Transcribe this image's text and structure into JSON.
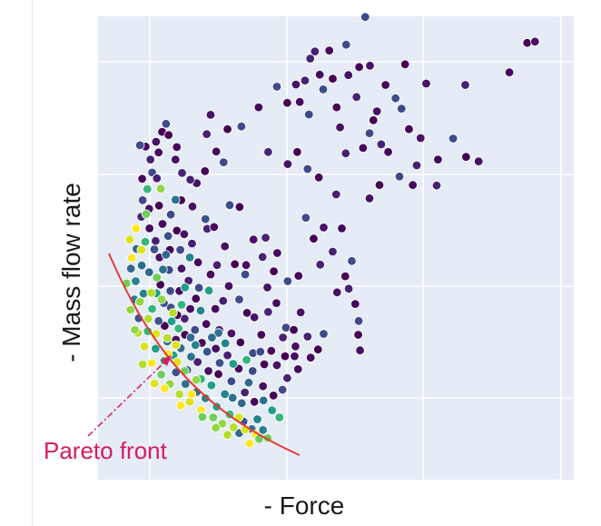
{
  "chart_data": {
    "type": "scatter",
    "title": "",
    "xlabel": "- Force",
    "ylabel": "- Mass flow rate",
    "xlim": [
      0,
      1
    ],
    "ylim": [
      0,
      1
    ],
    "grid": true,
    "ticks_shown": false,
    "legend": "none",
    "colormap": "viridis",
    "annotation": {
      "text": "Pareto front",
      "color": "#d81b60"
    },
    "front_curve_color": "#e53935",
    "dot_stroke": "#ffffff",
    "background": "#e5ecf6",
    "points_dark": [
      [
        0.575,
        0.962
      ],
      [
        0.949,
        0.904
      ],
      [
        0.967,
        0.907
      ],
      [
        0.459,
        0.885
      ],
      [
        0.492,
        0.887
      ],
      [
        0.531,
        0.9
      ],
      [
        0.561,
        0.85
      ],
      [
        0.586,
        0.853
      ],
      [
        0.448,
        0.869
      ],
      [
        0.47,
        0.833
      ],
      [
        0.478,
        0.8
      ],
      [
        0.5,
        0.824
      ],
      [
        0.536,
        0.832
      ],
      [
        0.555,
        0.783
      ],
      [
        0.622,
        0.81
      ],
      [
        0.645,
        0.78
      ],
      [
        0.667,
        0.856
      ],
      [
        0.716,
        0.813
      ],
      [
        0.806,
        0.81
      ],
      [
        0.908,
        0.838
      ],
      [
        0.371,
        0.806
      ],
      [
        0.395,
        0.77
      ],
      [
        0.415,
        0.811
      ],
      [
        0.436,
        0.82
      ],
      [
        0.424,
        0.772
      ],
      [
        0.445,
        0.744
      ],
      [
        0.509,
        0.76
      ],
      [
        0.517,
        0.715
      ],
      [
        0.53,
        0.657
      ],
      [
        0.57,
        0.669
      ],
      [
        0.585,
        0.702
      ],
      [
        0.594,
        0.731
      ],
      [
        0.602,
        0.751
      ],
      [
        0.612,
        0.677
      ],
      [
        0.628,
        0.66
      ],
      [
        0.659,
        0.757
      ],
      [
        0.676,
        0.711
      ],
      [
        0.703,
        0.691
      ],
      [
        0.694,
        0.63
      ],
      [
        0.743,
        0.643
      ],
      [
        0.778,
        0.69
      ],
      [
        0.808,
        0.649
      ],
      [
        0.837,
        0.639
      ],
      [
        0.74,
        0.585
      ],
      [
        0.685,
        0.586
      ],
      [
        0.654,
        0.605
      ],
      [
        0.608,
        0.586
      ],
      [
        0.585,
        0.556
      ],
      [
        0.508,
        0.565
      ],
      [
        0.468,
        0.603
      ],
      [
        0.442,
        0.622
      ],
      [
        0.418,
        0.66
      ],
      [
        0.396,
        0.633
      ],
      [
        0.351,
        0.66
      ],
      [
        0.329,
        0.76
      ],
      [
        0.289,
        0.717
      ],
      [
        0.257,
        0.711
      ],
      [
        0.218,
        0.743
      ],
      [
        0.209,
        0.7
      ],
      [
        0.231,
        0.661
      ],
      [
        0.248,
        0.637
      ],
      [
        0.205,
        0.617
      ],
      [
        0.186,
        0.59
      ],
      [
        0.171,
        0.598
      ],
      [
        0.14,
        0.671
      ],
      [
        0.115,
        0.723
      ],
      [
        0.106,
        0.705
      ],
      [
        0.092,
        0.683
      ],
      [
        0.079,
        0.643
      ],
      [
        0.068,
        0.672
      ],
      [
        0.055,
        0.675
      ],
      [
        0.121,
        0.698
      ],
      [
        0.137,
        0.643
      ],
      [
        0.152,
        0.613
      ],
      [
        0.098,
        0.659
      ],
      [
        0.083,
        0.614
      ],
      [
        0.15,
        0.552
      ],
      [
        0.176,
        0.538
      ],
      [
        0.21,
        0.488
      ],
      [
        0.226,
        0.492
      ],
      [
        0.262,
        0.541
      ],
      [
        0.285,
        0.537
      ],
      [
        0.317,
        0.464
      ],
      [
        0.345,
        0.468
      ],
      [
        0.372,
        0.434
      ],
      [
        0.438,
        0.513
      ],
      [
        0.456,
        0.466
      ],
      [
        0.479,
        0.491
      ],
      [
        0.5,
        0.437
      ],
      [
        0.521,
        0.489
      ],
      [
        0.544,
        0.416
      ],
      [
        0.529,
        0.382
      ],
      [
        0.51,
        0.346
      ],
      [
        0.537,
        0.354
      ],
      [
        0.552,
        0.32
      ],
      [
        0.56,
        0.282
      ],
      [
        0.559,
        0.251
      ],
      [
        0.563,
        0.216
      ],
      [
        0.471,
        0.408
      ],
      [
        0.421,
        0.383
      ],
      [
        0.396,
        0.371
      ],
      [
        0.364,
        0.393
      ],
      [
        0.349,
        0.357
      ],
      [
        0.338,
        0.425
      ],
      [
        0.3,
        0.407
      ],
      [
        0.298,
        0.386
      ],
      [
        0.274,
        0.409
      ],
      [
        0.251,
        0.449
      ],
      [
        0.233,
        0.407
      ],
      [
        0.218,
        0.386
      ],
      [
        0.191,
        0.356
      ],
      [
        0.184,
        0.332
      ],
      [
        0.171,
        0.309
      ],
      [
        0.158,
        0.287
      ],
      [
        0.141,
        0.295
      ],
      [
        0.126,
        0.312
      ],
      [
        0.112,
        0.271
      ],
      [
        0.26,
        0.36
      ],
      [
        0.247,
        0.327
      ],
      [
        0.229,
        0.309
      ],
      [
        0.284,
        0.33
      ],
      [
        0.302,
        0.3
      ],
      [
        0.319,
        0.29
      ],
      [
        0.351,
        0.302
      ],
      [
        0.37,
        0.322
      ],
      [
        0.392,
        0.267
      ],
      [
        0.41,
        0.262
      ],
      [
        0.426,
        0.301
      ],
      [
        0.442,
        0.247
      ],
      [
        0.449,
        0.2
      ],
      [
        0.479,
        0.253
      ],
      [
        0.466,
        0.218
      ],
      [
        0.414,
        0.225
      ],
      [
        0.385,
        0.245
      ],
      [
        0.335,
        0.251
      ],
      [
        0.316,
        0.21
      ],
      [
        0.287,
        0.234
      ],
      [
        0.266,
        0.254
      ],
      [
        0.238,
        0.262
      ],
      [
        0.208,
        0.275
      ],
      [
        0.182,
        0.262
      ],
      [
        0.159,
        0.251
      ],
      [
        0.138,
        0.24
      ],
      [
        0.094,
        0.601
      ],
      [
        0.06,
        0.6
      ],
      [
        0.061,
        0.552
      ],
      [
        0.099,
        0.54
      ],
      [
        0.076,
        0.533
      ],
      [
        0.058,
        0.515
      ],
      [
        0.107,
        0.499
      ],
      [
        0.126,
        0.52
      ],
      [
        0.14,
        0.484
      ],
      [
        0.157,
        0.476
      ],
      [
        0.175,
        0.455
      ],
      [
        0.189,
        0.413
      ],
      [
        0.148,
        0.441
      ],
      [
        0.124,
        0.441
      ],
      [
        0.1,
        0.424
      ],
      [
        0.091,
        0.461
      ],
      [
        0.077,
        0.489
      ],
      [
        0.122,
        0.396
      ],
      [
        0.102,
        0.363
      ],
      [
        0.151,
        0.399
      ],
      [
        0.167,
        0.372
      ],
      [
        0.146,
        0.349
      ],
      [
        0.125,
        0.349
      ],
      [
        0.198,
        0.233
      ],
      [
        0.23,
        0.22
      ],
      [
        0.257,
        0.205
      ],
      [
        0.283,
        0.175
      ],
      [
        0.315,
        0.17
      ],
      [
        0.342,
        0.185
      ],
      [
        0.371,
        0.183
      ],
      [
        0.395,
        0.154
      ],
      [
        0.42,
        0.174
      ],
      [
        0.384,
        0.128
      ],
      [
        0.363,
        0.115
      ],
      [
        0.339,
        0.136
      ],
      [
        0.297,
        0.122
      ],
      [
        0.319,
        0.101
      ],
      [
        0.266,
        0.147
      ],
      [
        0.236,
        0.163
      ],
      [
        0.213,
        0.17
      ],
      [
        0.188,
        0.19
      ],
      [
        0.358,
        0.215
      ],
      [
        0.333,
        0.213
      ],
      [
        0.39,
        0.203
      ],
      [
        0.412,
        0.203
      ]
    ],
    "points_mid": [
      [
        0.067,
        0.459
      ],
      [
        0.088,
        0.442
      ],
      [
        0.059,
        0.406
      ],
      [
        0.076,
        0.391
      ],
      [
        0.045,
        0.371
      ],
      [
        0.093,
        0.344
      ],
      [
        0.083,
        0.309
      ],
      [
        0.11,
        0.322
      ],
      [
        0.108,
        0.397
      ],
      [
        0.047,
        0.443
      ],
      [
        0.063,
        0.343
      ],
      [
        0.128,
        0.281
      ],
      [
        0.144,
        0.265
      ],
      [
        0.098,
        0.282
      ],
      [
        0.118,
        0.236
      ],
      [
        0.172,
        0.245
      ],
      [
        0.195,
        0.305
      ],
      [
        0.214,
        0.35
      ],
      [
        0.151,
        0.318
      ],
      [
        0.21,
        0.213
      ],
      [
        0.173,
        0.202
      ],
      [
        0.149,
        0.221
      ],
      [
        0.252,
        0.232
      ],
      [
        0.27,
        0.186
      ],
      [
        0.301,
        0.195
      ],
      [
        0.239,
        0.188
      ],
      [
        0.34,
        0.104
      ],
      [
        0.29,
        0.098
      ],
      [
        0.251,
        0.118
      ],
      [
        0.22,
        0.138
      ],
      [
        0.196,
        0.152
      ],
      [
        0.164,
        0.172
      ],
      [
        0.269,
        0.11
      ],
      [
        0.306,
        0.144
      ],
      [
        0.326,
        0.062
      ],
      [
        0.36,
        0.082
      ],
      [
        0.377,
        0.066
      ],
      [
        0.206,
        0.51
      ],
      [
        0.137,
        0.553
      ],
      [
        0.115,
        0.43
      ],
      [
        0.17,
        0.424
      ],
      [
        0.159,
        0.357
      ],
      [
        0.072,
        0.577
      ],
      [
        0.12,
        0.472
      ],
      [
        0.236,
        0.255
      ],
      [
        0.221,
        0.245
      ],
      [
        0.183,
        0.228
      ],
      [
        0.132,
        0.205
      ],
      [
        0.111,
        0.193
      ],
      [
        0.138,
        0.167
      ],
      [
        0.16,
        0.141
      ],
      [
        0.186,
        0.123
      ],
      [
        0.206,
        0.109
      ],
      [
        0.232,
        0.09
      ],
      [
        0.262,
        0.073
      ],
      [
        0.294,
        0.057
      ],
      [
        0.313,
        0.04
      ],
      [
        0.284,
        0.031
      ],
      [
        0.339,
        0.038
      ],
      [
        0.091,
        0.22
      ],
      [
        0.073,
        0.259
      ],
      [
        0.052,
        0.288
      ],
      [
        0.042,
        0.33
      ],
      [
        0.034,
        0.399
      ]
    ],
    "points_bright": [
      [
        0.031,
        0.464
      ],
      [
        0.046,
        0.489
      ],
      [
        0.024,
        0.366
      ],
      [
        0.033,
        0.307
      ],
      [
        0.05,
        0.255
      ],
      [
        0.065,
        0.225
      ],
      [
        0.082,
        0.188
      ],
      [
        0.104,
        0.162
      ],
      [
        0.124,
        0.141
      ],
      [
        0.146,
        0.118
      ],
      [
        0.17,
        0.101
      ],
      [
        0.196,
        0.083
      ],
      [
        0.224,
        0.066
      ],
      [
        0.245,
        0.052
      ],
      [
        0.271,
        0.044
      ],
      [
        0.298,
        0.039
      ],
      [
        0.322,
        0.028
      ],
      [
        0.35,
        0.02
      ],
      [
        0.055,
        0.325
      ],
      [
        0.074,
        0.287
      ],
      [
        0.092,
        0.253
      ],
      [
        0.12,
        0.208
      ],
      [
        0.158,
        0.17
      ],
      [
        0.185,
        0.15
      ],
      [
        0.081,
        0.345
      ],
      [
        0.058,
        0.441
      ],
      [
        0.036,
        0.423
      ],
      [
        0.069,
        0.521
      ],
      [
        0.103,
        0.578
      ],
      [
        0.118,
        0.244
      ],
      [
        0.141,
        0.19
      ],
      [
        0.174,
        0.118
      ],
      [
        0.199,
        0.067
      ],
      [
        0.23,
        0.043
      ],
      [
        0.257,
        0.027
      ],
      [
        0.283,
        0.066
      ],
      [
        0.308,
        0.008
      ],
      [
        0.33,
        0.018
      ],
      [
        0.043,
        0.262
      ],
      [
        0.061,
        0.185
      ],
      [
        0.088,
        0.142
      ],
      [
        0.112,
        0.131
      ],
      [
        0.094,
        0.379
      ],
      [
        0.105,
        0.33
      ],
      [
        0.131,
        0.3
      ],
      [
        0.138,
        0.228
      ],
      [
        0.149,
        0.093
      ]
    ]
  }
}
